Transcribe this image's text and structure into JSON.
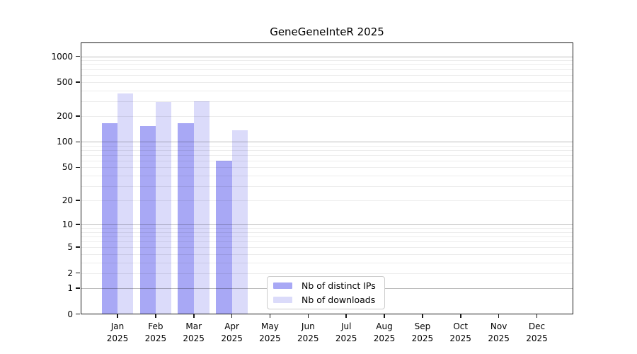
{
  "title": "GeneGeneInteR 2025",
  "chart_data": {
    "type": "bar",
    "title": "GeneGeneInteR 2025",
    "categories": [
      "Jan 2025",
      "Feb 2025",
      "Mar 2025",
      "Apr 2025",
      "May 2025",
      "Jun 2025",
      "Jul 2025",
      "Aug 2025",
      "Sep 2025",
      "Oct 2025",
      "Nov 2025",
      "Dec 2025"
    ],
    "series": [
      {
        "name": "Nb of distinct IPs",
        "color": "#a8a8f5",
        "values": [
          167,
          154,
          165,
          60,
          0,
          0,
          0,
          0,
          0,
          0,
          0,
          0
        ]
      },
      {
        "name": "Nb of downloads",
        "color": "#dbdbfa",
        "values": [
          366,
          294,
          302,
          137,
          0,
          0,
          0,
          0,
          0,
          0,
          0,
          0
        ]
      }
    ],
    "xlabel": "",
    "ylabel": "",
    "yticks": [
      0,
      1,
      2,
      5,
      10,
      20,
      50,
      100,
      200,
      500,
      1000
    ],
    "yscale": "log10(value+1)",
    "ylim": [
      0,
      1450
    ],
    "grid": "on",
    "grid_major_color": "#bdbdbd",
    "grid_minor_color": "#ececec",
    "legend_position": "lower center"
  },
  "legend": {
    "items": [
      {
        "label": "Nb of distinct IPs",
        "color": "#a8a8f5"
      },
      {
        "label": "Nb of downloads",
        "color": "#dbdbfa"
      }
    ]
  }
}
